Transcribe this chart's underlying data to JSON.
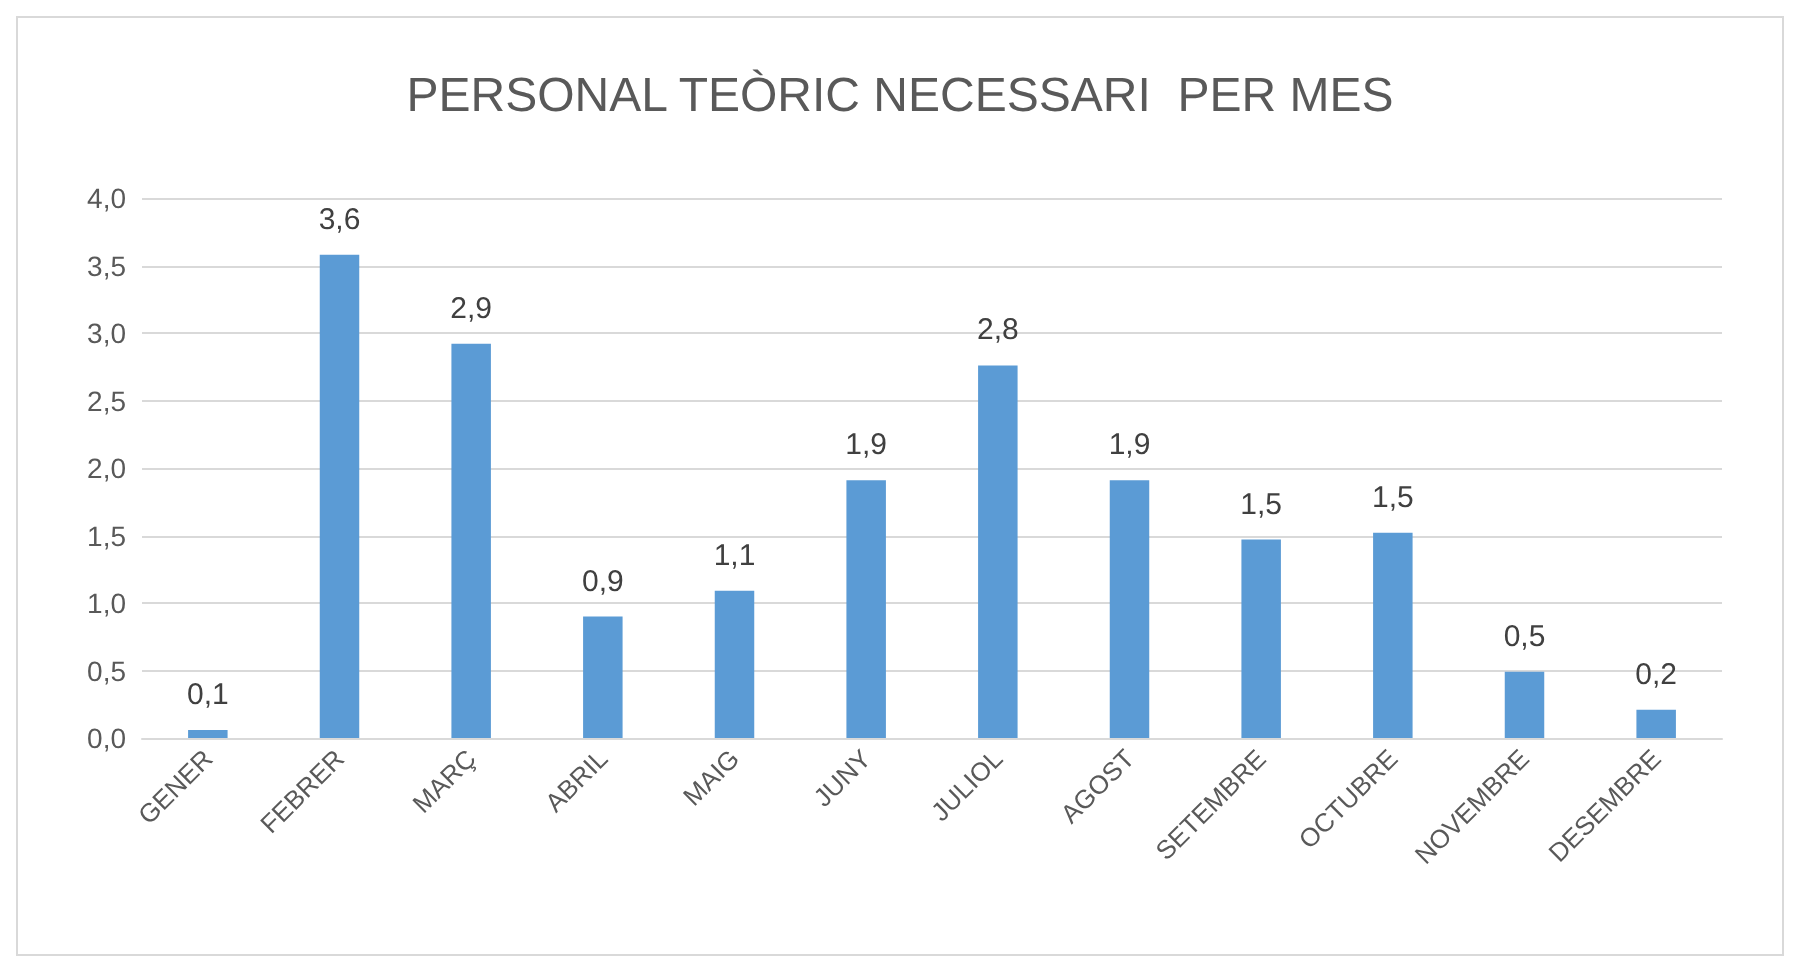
{
  "chart_data": {
    "type": "bar",
    "title": "PERSONAL TEÒRIC NECESSARI  PER MES",
    "categories": [
      "GENER",
      "FEBRER",
      "MARÇ",
      "ABRIL",
      "MAIG",
      "JUNY",
      "JULIOL",
      "AGOST",
      "SETEMBRE",
      "OCTUBRE",
      "NOVEMBRE",
      "DESEMBRE"
    ],
    "values": [
      0.06,
      3.58,
      2.92,
      0.9,
      1.09,
      1.91,
      2.76,
      1.91,
      1.47,
      1.52,
      0.49,
      0.21
    ],
    "value_labels": [
      "0,1",
      "3,6",
      "2,9",
      "0,9",
      "1,1",
      "1,9",
      "2,8",
      "1,9",
      "1,5",
      "1,5",
      "0,5",
      "0,2"
    ],
    "color": "#5b9bd5",
    "ylim": [
      0,
      4
    ],
    "yticks": [
      {
        "value": 0,
        "label": "0,0"
      },
      {
        "value": 0.5,
        "label": "0,5"
      },
      {
        "value": 1,
        "label": "1,0"
      },
      {
        "value": 1.5,
        "label": "1,5"
      },
      {
        "value": 2,
        "label": "2,0"
      },
      {
        "value": 2.5,
        "label": "2,5"
      },
      {
        "value": 3,
        "label": "3,0"
      },
      {
        "value": 3.5,
        "label": "3,5"
      },
      {
        "value": 4,
        "label": "4,0"
      }
    ],
    "grid": "y"
  }
}
